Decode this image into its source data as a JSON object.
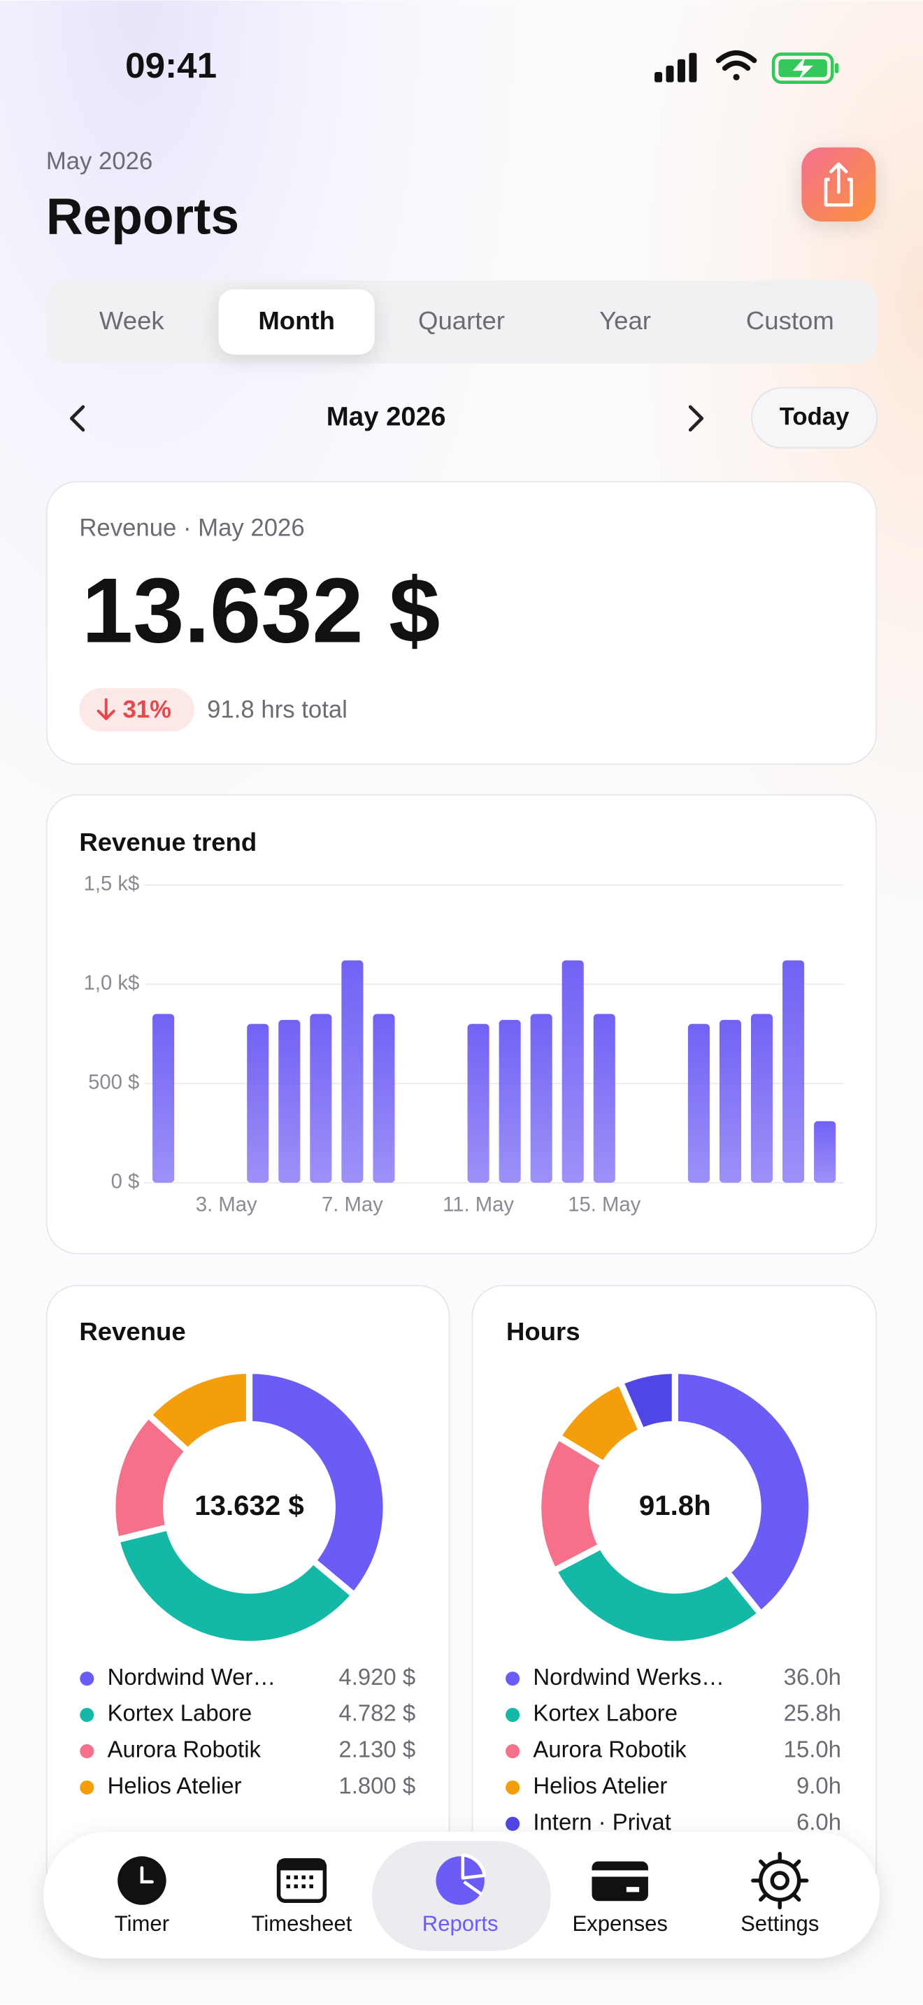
{
  "status_bar": {
    "time": "09:41"
  },
  "header": {
    "subtitle": "May 2026",
    "title": "Reports"
  },
  "period_tabs": {
    "items": [
      "Week",
      "Month",
      "Quarter",
      "Year",
      "Custom"
    ],
    "selected": 1
  },
  "period_nav": {
    "label": "May 2026",
    "today": "Today"
  },
  "summary": {
    "caption": "Revenue · May 2026",
    "amount": "13.632 $",
    "change": "31%",
    "hours": "91.8 hrs total"
  },
  "trend_chart": {
    "type": "bar",
    "title": "Revenue trend",
    "color": "#7262f5",
    "x": [
      1,
      4,
      5,
      6,
      7,
      8,
      11,
      12,
      13,
      14,
      15,
      18,
      19,
      20,
      21,
      22
    ],
    "values": [
      850,
      800,
      820,
      850,
      1120,
      850,
      800,
      820,
      850,
      1120,
      850,
      800,
      820,
      850,
      1120,
      310
    ],
    "xlim": [
      0.4,
      22.6
    ],
    "xticks": [
      {
        "value": 3,
        "label": "3. May"
      },
      {
        "value": 7,
        "label": "7. May"
      },
      {
        "value": 11,
        "label": "11. May"
      },
      {
        "value": 15,
        "label": "15. May"
      }
    ],
    "ylim": [
      0,
      1500
    ],
    "yticks": [
      {
        "value": 0,
        "label": "0 $"
      },
      {
        "value": 500,
        "label": "500 $"
      },
      {
        "value": 1000,
        "label": "1,0 k$"
      },
      {
        "value": 1500,
        "label": "1,5 k$"
      }
    ],
    "grid": true
  },
  "donuts": [
    {
      "type": "donut",
      "title": "Revenue",
      "center_label": "13.632 $",
      "labels": [
        "Nordwind Wer…",
        "Kortex Labore",
        "Aurora Robotik",
        "Helios Atelier"
      ],
      "values": [
        4920,
        4782,
        2130,
        1800
      ],
      "value_labels": [
        "4.920 $",
        "4.782 $",
        "2.130 $",
        "1.800 $"
      ],
      "colors": [
        "#6c5cf6",
        "#14b8a6",
        "#f7708a",
        "#f59e0b"
      ]
    },
    {
      "type": "donut",
      "title": "Hours",
      "center_label": "91.8h",
      "labels": [
        "Nordwind Werks…",
        "Kortex Labore",
        "Aurora Robotik",
        "Helios Atelier",
        "Intern · Privat"
      ],
      "values": [
        36.0,
        25.8,
        15.0,
        9.0,
        6.0
      ],
      "value_labels": [
        "36.0h",
        "25.8h",
        "15.0h",
        "9.0h",
        "6.0h"
      ],
      "colors": [
        "#6c5cf6",
        "#14b8a6",
        "#f7708a",
        "#f59e0b",
        "#5046e5"
      ]
    }
  ],
  "tab_bar": {
    "items": [
      "Timer",
      "Timesheet",
      "Reports",
      "Expenses",
      "Settings"
    ],
    "selected": 2
  }
}
